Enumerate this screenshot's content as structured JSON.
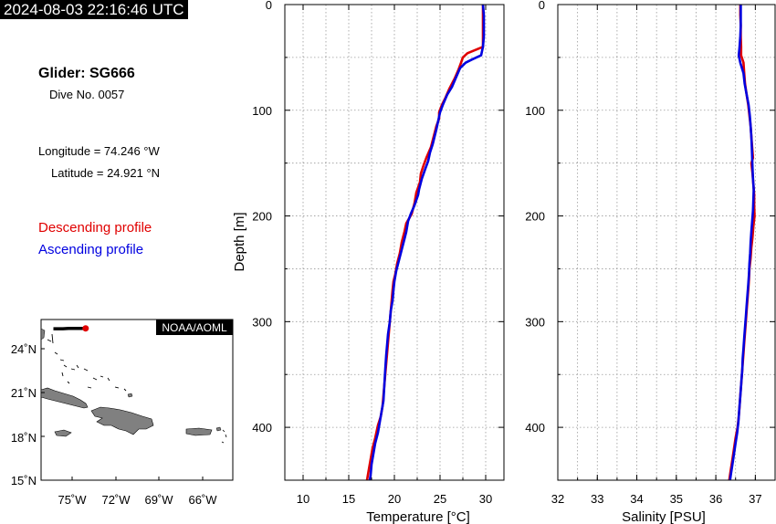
{
  "header": {
    "timestamp": "2024-08-03 22:16:46 UTC",
    "glider": "Glider: SG666",
    "dive": "Dive No. 0057",
    "longitude": "Longitude = 74.246 °W",
    "latitude": "Latitude = 24.921 °N",
    "desc_label": "Descending profile",
    "asc_label": "Ascending profile"
  },
  "colors": {
    "descending": "#e00000",
    "ascending": "#0000e0"
  },
  "map": {
    "badge": "NOAA/AOML",
    "lat_ticks": [
      "24˚N",
      "21˚N",
      "18˚N",
      "15˚N"
    ],
    "lon_ticks": [
      "75˚W",
      "72˚W",
      "69˚W",
      "66˚W"
    ],
    "lon_range": [
      -77.5,
      -63.5
    ],
    "lat_range": [
      15,
      25.5
    ],
    "track": [
      [
        -76.6,
        24.9
      ],
      [
        -76.3,
        24.9
      ],
      [
        -75.9,
        24.9
      ],
      [
        -75.5,
        24.92
      ],
      [
        -75.0,
        24.92
      ],
      [
        -74.6,
        24.92
      ],
      [
        -74.246,
        24.921
      ]
    ],
    "current_position": [
      -74.246,
      24.921
    ]
  },
  "chart_data": [
    {
      "type": "line",
      "xlabel": "Temperature [°C]",
      "ylabel": "Depth [m]",
      "xlim": [
        8,
        32
      ],
      "ylim": [
        0,
        450
      ],
      "y_inverted": true,
      "grid": true,
      "xticks": [
        "10",
        "15",
        "20",
        "25",
        "30"
      ],
      "yticks": [
        "0",
        "100",
        "200",
        "300",
        "400"
      ],
      "series": [
        {
          "name": "Descending profile",
          "points": [
            [
              29.7,
              0
            ],
            [
              29.7,
              10
            ],
            [
              29.7,
              20
            ],
            [
              29.7,
              30
            ],
            [
              29.7,
              40
            ],
            [
              28.0,
              46
            ],
            [
              27.5,
              50
            ],
            [
              27.3,
              55
            ],
            [
              27.0,
              62
            ],
            [
              26.6,
              70
            ],
            [
              26.0,
              80
            ],
            [
              25.6,
              88
            ],
            [
              25.2,
              95
            ],
            [
              24.9,
              102
            ],
            [
              24.9,
              108
            ],
            [
              24.6,
              115
            ],
            [
              24.3,
              125
            ],
            [
              24.0,
              135
            ],
            [
              23.5,
              145
            ],
            [
              23.2,
              152
            ],
            [
              22.9,
              160
            ],
            [
              22.8,
              168
            ],
            [
              22.4,
              178
            ],
            [
              22.2,
              188
            ],
            [
              21.9,
              198
            ],
            [
              21.3,
              207
            ],
            [
              21.1,
              215
            ],
            [
              20.8,
              225
            ],
            [
              20.6,
              235
            ],
            [
              20.3,
              245
            ],
            [
              20.1,
              255
            ],
            [
              19.9,
              262
            ],
            [
              19.8,
              270
            ],
            [
              19.7,
              280
            ],
            [
              19.6,
              290
            ],
            [
              19.5,
              300
            ],
            [
              19.4,
              310
            ],
            [
              19.3,
              320
            ],
            [
              19.2,
              330
            ],
            [
              19.1,
              340
            ],
            [
              19.0,
              350
            ],
            [
              18.9,
              360
            ],
            [
              18.8,
              370
            ],
            [
              18.7,
              380
            ],
            [
              18.5,
              390
            ],
            [
              18.2,
              398
            ],
            [
              17.9,
              410
            ],
            [
              17.6,
              420
            ],
            [
              17.4,
              430
            ],
            [
              17.2,
              440
            ],
            [
              17.0,
              450
            ]
          ]
        },
        {
          "name": "Ascending profile",
          "points": [
            [
              29.7,
              0
            ],
            [
              29.8,
              10
            ],
            [
              29.8,
              20
            ],
            [
              29.8,
              30
            ],
            [
              29.7,
              40
            ],
            [
              29.5,
              48
            ],
            [
              28.5,
              52
            ],
            [
              27.8,
              55
            ],
            [
              27.2,
              60
            ],
            [
              26.8,
              68
            ],
            [
              26.3,
              78
            ],
            [
              25.8,
              85
            ],
            [
              25.3,
              95
            ],
            [
              25.0,
              102
            ],
            [
              24.8,
              110
            ],
            [
              24.6,
              118
            ],
            [
              24.4,
              125
            ],
            [
              24.2,
              132
            ],
            [
              23.9,
              140
            ],
            [
              23.7,
              148
            ],
            [
              23.4,
              155
            ],
            [
              23.0,
              165
            ],
            [
              22.7,
              175
            ],
            [
              22.6,
              180
            ],
            [
              22.2,
              190
            ],
            [
              21.8,
              198
            ],
            [
              21.5,
              205
            ],
            [
              21.3,
              215
            ],
            [
              21.1,
              222
            ],
            [
              20.8,
              232
            ],
            [
              20.5,
              242
            ],
            [
              20.2,
              252
            ],
            [
              20.0,
              262
            ],
            [
              19.9,
              270
            ],
            [
              19.8,
              280
            ],
            [
              19.6,
              290
            ],
            [
              19.5,
              300
            ],
            [
              19.3,
              312
            ],
            [
              19.2,
              322
            ],
            [
              19.1,
              332
            ],
            [
              19.0,
              345
            ],
            [
              18.9,
              360
            ],
            [
              18.8,
              375
            ],
            [
              18.6,
              385
            ],
            [
              18.4,
              395
            ],
            [
              18.2,
              405
            ],
            [
              17.9,
              415
            ],
            [
              17.7,
              425
            ],
            [
              17.5,
              435
            ],
            [
              17.4,
              445
            ],
            [
              17.3,
              450
            ]
          ]
        }
      ]
    },
    {
      "type": "line",
      "xlabel": "Salinity [PSU]",
      "ylabel": "",
      "xlim": [
        32,
        37.5
      ],
      "ylim": [
        0,
        450
      ],
      "y_inverted": true,
      "grid": true,
      "xticks": [
        "32",
        "33",
        "34",
        "35",
        "36",
        "37"
      ],
      "yticks": [
        "0",
        "100",
        "200",
        "300",
        "400"
      ],
      "series": [
        {
          "name": "Descending profile",
          "points": [
            [
              36.62,
              0
            ],
            [
              36.62,
              10
            ],
            [
              36.63,
              20
            ],
            [
              36.63,
              30
            ],
            [
              36.64,
              40
            ],
            [
              36.64,
              48
            ],
            [
              36.7,
              55
            ],
            [
              36.72,
              65
            ],
            [
              36.74,
              75
            ],
            [
              36.78,
              85
            ],
            [
              36.82,
              95
            ],
            [
              36.85,
              105
            ],
            [
              36.88,
              115
            ],
            [
              36.9,
              125
            ],
            [
              36.92,
              135
            ],
            [
              36.94,
              145
            ],
            [
              36.9,
              150
            ],
            [
              36.93,
              160
            ],
            [
              36.95,
              170
            ],
            [
              36.97,
              180
            ],
            [
              36.97,
              190
            ],
            [
              36.98,
              200
            ],
            [
              36.95,
              210
            ],
            [
              36.93,
              220
            ],
            [
              36.9,
              230
            ],
            [
              36.88,
              240
            ],
            [
              36.85,
              250
            ],
            [
              36.84,
              260
            ],
            [
              36.82,
              270
            ],
            [
              36.8,
              280
            ],
            [
              36.78,
              290
            ],
            [
              36.76,
              300
            ],
            [
              36.74,
              310
            ],
            [
              36.72,
              320
            ],
            [
              36.7,
              330
            ],
            [
              36.68,
              340
            ],
            [
              36.66,
              350
            ],
            [
              36.64,
              360
            ],
            [
              36.62,
              370
            ],
            [
              36.6,
              380
            ],
            [
              36.58,
              390
            ],
            [
              36.55,
              400
            ],
            [
              36.5,
              410
            ],
            [
              36.46,
              420
            ],
            [
              36.42,
              430
            ],
            [
              36.38,
              440
            ],
            [
              36.34,
              450
            ]
          ]
        },
        {
          "name": "Ascending profile",
          "points": [
            [
              36.63,
              0
            ],
            [
              36.63,
              10
            ],
            [
              36.63,
              20
            ],
            [
              36.62,
              30
            ],
            [
              36.6,
              40
            ],
            [
              36.58,
              48
            ],
            [
              36.62,
              55
            ],
            [
              36.7,
              65
            ],
            [
              36.73,
              75
            ],
            [
              36.78,
              85
            ],
            [
              36.83,
              95
            ],
            [
              36.86,
              105
            ],
            [
              36.88,
              115
            ],
            [
              36.9,
              125
            ],
            [
              36.91,
              135
            ],
            [
              36.92,
              145
            ],
            [
              36.93,
              155
            ],
            [
              36.94,
              165
            ],
            [
              36.96,
              175
            ],
            [
              36.95,
              185
            ],
            [
              36.94,
              195
            ],
            [
              36.92,
              205
            ],
            [
              36.9,
              215
            ],
            [
              36.88,
              225
            ],
            [
              36.87,
              235
            ],
            [
              36.85,
              245
            ],
            [
              36.84,
              255
            ],
            [
              36.82,
              265
            ],
            [
              36.8,
              275
            ],
            [
              36.78,
              285
            ],
            [
              36.76,
              295
            ],
            [
              36.74,
              305
            ],
            [
              36.72,
              315
            ],
            [
              36.7,
              325
            ],
            [
              36.68,
              335
            ],
            [
              36.67,
              345
            ],
            [
              36.65,
              355
            ],
            [
              36.63,
              365
            ],
            [
              36.61,
              375
            ],
            [
              36.59,
              385
            ],
            [
              36.57,
              395
            ],
            [
              36.54,
              405
            ],
            [
              36.5,
              415
            ],
            [
              36.46,
              425
            ],
            [
              36.42,
              435
            ],
            [
              36.38,
              445
            ],
            [
              36.36,
              450
            ]
          ]
        }
      ]
    }
  ]
}
